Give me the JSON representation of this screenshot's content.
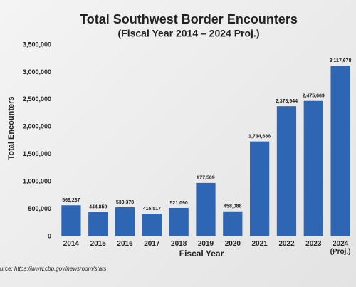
{
  "chart_data": {
    "type": "bar",
    "title": "Total Southwest Border Encounters",
    "subtitle": "(Fiscal Year 2014 – 2024 Proj.)",
    "x_label": "Fiscal Year",
    "y_label": "Total Encounters",
    "source": "urce: https://www.cbp.gov/newsroom/stats",
    "categories": [
      "2014",
      "2015",
      "2016",
      "2017",
      "2018",
      "2019",
      "2020",
      "2021",
      "2022",
      "2023",
      "2024 (Proj.)"
    ],
    "values": [
      569237,
      444859,
      533378,
      415517,
      521090,
      977509,
      458088,
      1734686,
      2378944,
      2475669,
      3117678
    ],
    "value_labels": [
      "569,237",
      "444,859",
      "533,378",
      "415,517",
      "521,090",
      "977,509",
      "458,088",
      "1,734,686",
      "2,378,944",
      "2,475,669",
      "3,117,678"
    ],
    "color": "#2f66b3",
    "ylim": [
      0,
      3500000
    ],
    "yticks": [
      0,
      {
        "value": 500000,
        "label": "500,000"
      },
      {
        "value": 1000000,
        "label": "1,000,000"
      },
      {
        "value": 1500000,
        "label": "1,500,000"
      },
      {
        "value": 2000000,
        "label": "2,000,000"
      },
      {
        "value": 2500000,
        "label": "2,500,000"
      },
      {
        "value": 3000000,
        "label": "3,000,000"
      },
      {
        "value": 3500000,
        "label": "3,500,000"
      }
    ],
    "grid": false
  }
}
